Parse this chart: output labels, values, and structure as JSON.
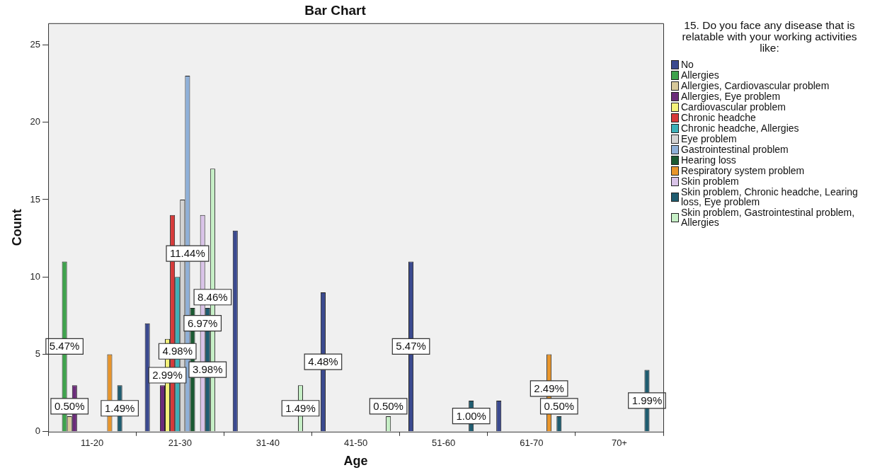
{
  "chart_data": {
    "type": "bar",
    "title": "Bar Chart",
    "xlabel": "Age",
    "ylabel": "Count",
    "legend_title": "15. Do you face any disease that is relatable with your working activities like:",
    "legend": "right",
    "categories": [
      "11-20",
      "21-30",
      "31-40",
      "41-50",
      "51-60",
      "61-70",
      "70+"
    ],
    "ylim": [
      0,
      26.4
    ],
    "yticks": [
      0,
      5,
      10,
      15,
      20,
      25
    ],
    "series": [
      {
        "name": "No",
        "color": "#3b4a8f",
        "values": [
          null,
          7,
          13,
          9,
          11,
          2,
          null
        ]
      },
      {
        "name": "Allergies",
        "color": "#3fa34d",
        "values": [
          11,
          null,
          null,
          null,
          null,
          null,
          null
        ]
      },
      {
        "name": "Allergies, Cardiovascular problem",
        "color": "#d8c99a",
        "values": [
          1,
          null,
          null,
          null,
          null,
          null,
          null
        ]
      },
      {
        "name": "Allergies, Eye problem",
        "color": "#6b2c7a",
        "values": [
          3,
          3,
          null,
          null,
          null,
          null,
          null
        ]
      },
      {
        "name": "Cardiovascular problem",
        "color": "#f4f27a",
        "values": [
          null,
          6,
          null,
          null,
          null,
          null,
          null
        ]
      },
      {
        "name": "Chronic headche",
        "color": "#d63a3a",
        "values": [
          null,
          14,
          null,
          null,
          null,
          null,
          null
        ]
      },
      {
        "name": "Chronic headche, Allergies",
        "color": "#3cb0b8",
        "values": [
          null,
          10,
          null,
          null,
          null,
          null,
          null
        ]
      },
      {
        "name": "Eye problem",
        "color": "#d4d4d4",
        "values": [
          null,
          15,
          null,
          null,
          null,
          null,
          null
        ]
      },
      {
        "name": "Gastrointestinal problem",
        "color": "#8fb0d8",
        "values": [
          null,
          23,
          null,
          null,
          null,
          null,
          null
        ]
      },
      {
        "name": "Hearing loss",
        "color": "#1b5a32",
        "values": [
          null,
          8,
          null,
          null,
          null,
          null,
          null
        ]
      },
      {
        "name": "Respiratory system problem",
        "color": "#e8952b",
        "values": [
          5,
          null,
          null,
          null,
          null,
          5,
          null
        ]
      },
      {
        "name": "Skin problem",
        "color": "#d9c3e8",
        "values": [
          null,
          14,
          null,
          null,
          null,
          null,
          null
        ]
      },
      {
        "name": "Skin problem, Chronic headche, Learing loss, Eye problem",
        "color": "#1f5c70",
        "values": [
          3,
          8,
          null,
          null,
          2,
          1,
          4
        ]
      },
      {
        "name": "Skin problem, Gastrointestinal problem, Allergies",
        "color": "#c6efc6",
        "values": [
          null,
          17,
          3,
          1,
          null,
          null,
          null
        ]
      }
    ],
    "annotations": [
      "5.47%",
      "0.50%",
      "1.49%",
      "11.44%",
      "8.46%",
      "6.97%",
      "4.98%",
      "3.98%",
      "2.99%",
      "1.49%",
      "4.48%",
      "0.50%",
      "5.47%",
      "1.00%",
      "2.49%",
      "0.50%",
      "1.99%"
    ]
  }
}
